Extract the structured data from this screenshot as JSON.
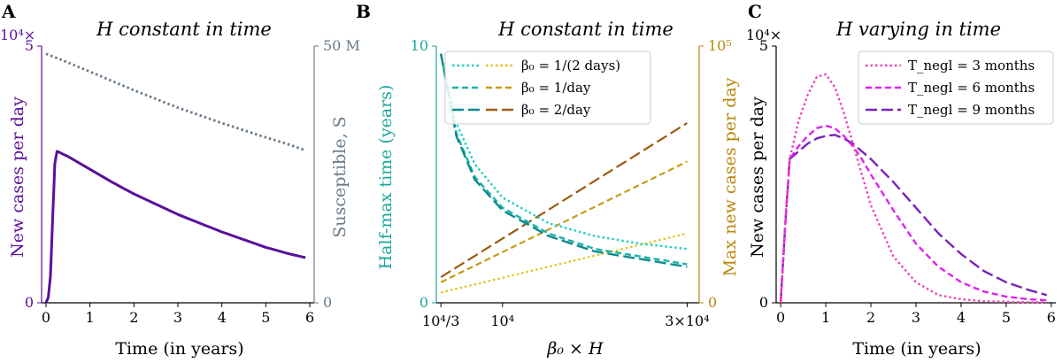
{
  "panel_a": {
    "label": "A",
    "title": "H constant in time",
    "xlabel": "Time (in years)",
    "ylabel_left": "New cases per day",
    "ylabel_right": "Susceptible, S",
    "exp_left": "10⁴×",
    "x_ticks": [
      "0",
      "1",
      "2",
      "3",
      "4",
      "5",
      "6"
    ],
    "yl_ticks": [
      "0",
      "5"
    ],
    "yr_ticks": [
      "0",
      "50 M"
    ],
    "colors": {
      "cases": "#5b0f9a",
      "susceptible": "#6a7a88",
      "left_axis": "#5b0f9a",
      "right_axis": "#6a7a88"
    }
  },
  "panel_b": {
    "label": "B",
    "title": "H constant in time",
    "xlabel": "β₀ × H",
    "ylabel_left": "Half-max time (years)",
    "ylabel_right": "Max new cases per day",
    "x_ticks": [
      "10⁴/3",
      "10⁴",
      "3×10⁴"
    ],
    "yl_ticks": [
      "0",
      "10"
    ],
    "yr_ticks": [
      "0",
      "10⁵"
    ],
    "legend": [
      "β₀ = 1/(2 days)",
      "β₀ = 1/day",
      "β₀ = 2/day"
    ],
    "colors": {
      "teal": [
        "#21d0c0",
        "#19b4a4",
        "#0e8a8e"
      ],
      "gold": [
        "#e2c21c",
        "#c99a14",
        "#9b5a10"
      ],
      "left_axis": "#19a79a",
      "right_axis": "#b8860b"
    }
  },
  "panel_c": {
    "label": "C",
    "title": "H varying in time",
    "xlabel": "Time (in years)",
    "ylabel": "New cases per day",
    "exp_left": "10⁴×",
    "x_ticks": [
      "0",
      "1",
      "2",
      "3",
      "4",
      "5",
      "6"
    ],
    "y_ticks": [
      "0",
      "5"
    ],
    "legend": [
      "T_negl = 3 months",
      "T_negl = 6 months",
      "T_negl = 9 months"
    ],
    "colors": [
      "#ee44bb",
      "#dd22ee",
      "#7a22bb"
    ]
  },
  "chart_data": [
    {
      "type": "line",
      "title": "H constant in time",
      "xlabel": "Time (in years)",
      "ylabel": "New cases per day",
      "y2label": "Susceptible, S",
      "xlim": [
        -0.1,
        6.1
      ],
      "ylim": [
        0,
        5
      ],
      "y2lim": [
        0,
        50
      ],
      "y_unit": "10^4 cases/day",
      "y2_unit": "millions",
      "series": [
        {
          "name": "New cases per day",
          "axis": "left",
          "x": [
            0,
            0.05,
            0.1,
            0.15,
            0.2,
            0.25,
            0.5,
            1,
            1.5,
            2,
            2.5,
            3,
            3.5,
            4,
            4.5,
            5,
            5.5,
            5.9
          ],
          "y": [
            0,
            0.1,
            0.5,
            1.6,
            2.7,
            2.95,
            2.85,
            2.6,
            2.35,
            2.12,
            1.92,
            1.72,
            1.55,
            1.38,
            1.23,
            1.08,
            0.96,
            0.88
          ]
        },
        {
          "name": "Susceptible, S",
          "axis": "right",
          "style": "dotted",
          "x": [
            0,
            0.5,
            1,
            1.5,
            2,
            2.5,
            3,
            3.5,
            4,
            4.5,
            5,
            5.5,
            5.9
          ],
          "y": [
            48.5,
            46.8,
            45.0,
            43.2,
            41.4,
            39.7,
            38.0,
            36.5,
            35.0,
            33.6,
            32.2,
            30.9,
            29.7
          ]
        }
      ]
    },
    {
      "type": "line",
      "title": "H constant in time",
      "xlabel": "β₀ × H",
      "ylabel": "Half-max time (years)",
      "y2label": "Max new cases per day",
      "xlim": [
        2833,
        31300
      ],
      "ylim": [
        0,
        10
      ],
      "y2lim": [
        0,
        100000
      ],
      "x_tick_values": [
        3333,
        10000,
        30000
      ],
      "series": [
        {
          "name": "β₀ = 1/(2 days)",
          "axis": "left",
          "style": "dotted",
          "x": [
            3333,
            5000,
            7000,
            10000,
            15000,
            20000,
            25000,
            30000
          ],
          "y": [
            9.7,
            7.0,
            5.4,
            4.1,
            3.1,
            2.6,
            2.3,
            2.1
          ]
        },
        {
          "name": "β₀ = 1/day",
          "axis": "left",
          "style": "dashed",
          "x": [
            3333,
            5000,
            7000,
            10000,
            15000,
            20000,
            25000,
            30000
          ],
          "y": [
            9.7,
            6.6,
            4.9,
            3.7,
            2.7,
            2.1,
            1.8,
            1.5
          ]
        },
        {
          "name": "β₀ = 2/day",
          "axis": "left",
          "style": "longdash",
          "x": [
            3333,
            5000,
            7000,
            10000,
            15000,
            20000,
            25000,
            30000
          ],
          "y": [
            9.7,
            6.5,
            4.8,
            3.6,
            2.6,
            2.0,
            1.7,
            1.4
          ]
        },
        {
          "name": "β₀ = 1/(2 days)",
          "axis": "right",
          "style": "dotted",
          "x": [
            3333,
            30000
          ],
          "y": [
            4000,
            27000
          ]
        },
        {
          "name": "β₀ = 1/day",
          "axis": "right",
          "style": "dashed",
          "x": [
            3333,
            30000
          ],
          "y": [
            8000,
            55000
          ]
        },
        {
          "name": "β₀ = 2/day",
          "axis": "right",
          "style": "longdash",
          "x": [
            3333,
            30000
          ],
          "y": [
            10000,
            70000
          ]
        }
      ]
    },
    {
      "type": "line",
      "title": "H varying in time",
      "xlabel": "Time (in years)",
      "ylabel": "New cases per day",
      "xlim": [
        -0.1,
        6.1
      ],
      "ylim": [
        0,
        5
      ],
      "y_unit": "10^4 cases/day",
      "series": [
        {
          "name": "T_negl = 3 months",
          "style": "dotted",
          "x": [
            0,
            0.1,
            0.2,
            0.4,
            0.6,
            0.8,
            1.0,
            1.2,
            1.4,
            1.6,
            1.8,
            2.0,
            2.5,
            3.0,
            3.5,
            4.0,
            4.5,
            5.0,
            5.5,
            5.9
          ],
          "y": [
            0,
            1.5,
            2.8,
            3.55,
            4.05,
            4.4,
            4.45,
            4.2,
            3.7,
            3.1,
            2.5,
            1.9,
            0.9,
            0.4,
            0.15,
            0.07,
            0.03,
            0.02,
            0.01,
            0.01
          ]
        },
        {
          "name": "T_negl = 6 months",
          "style": "dashed",
          "x": [
            0,
            0.1,
            0.2,
            0.4,
            0.6,
            0.8,
            1.0,
            1.2,
            1.4,
            1.6,
            1.8,
            2.0,
            2.5,
            3.0,
            3.5,
            4.0,
            4.5,
            5.0,
            5.5,
            5.9
          ],
          "y": [
            0,
            1.5,
            2.8,
            3.05,
            3.25,
            3.4,
            3.45,
            3.4,
            3.25,
            3.05,
            2.8,
            2.5,
            1.8,
            1.15,
            0.7,
            0.4,
            0.22,
            0.12,
            0.07,
            0.05
          ]
        },
        {
          "name": "T_negl = 9 months",
          "style": "longdash",
          "x": [
            0,
            0.1,
            0.2,
            0.4,
            0.6,
            0.8,
            1.0,
            1.2,
            1.4,
            1.6,
            1.8,
            2.0,
            2.5,
            3.0,
            3.5,
            4.0,
            4.5,
            5.0,
            5.5,
            5.9
          ],
          "y": [
            0,
            1.5,
            2.8,
            2.95,
            3.1,
            3.2,
            3.25,
            3.27,
            3.2,
            3.1,
            2.95,
            2.8,
            2.35,
            1.85,
            1.35,
            0.95,
            0.62,
            0.4,
            0.25,
            0.15
          ]
        }
      ]
    }
  ]
}
